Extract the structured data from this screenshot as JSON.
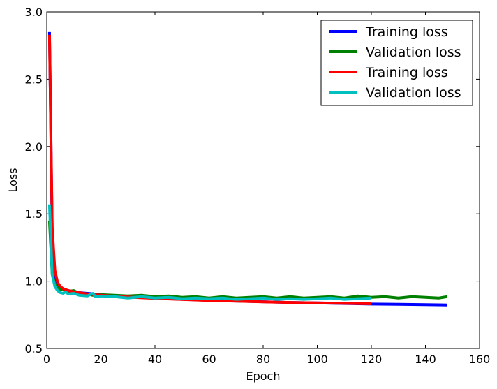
{
  "chart_data": {
    "type": "line",
    "title": "",
    "xlabel": "Epoch",
    "ylabel": "Loss",
    "xlim": [
      0,
      160
    ],
    "ylim": [
      0.5,
      3.0
    ],
    "xticks": [
      "0",
      "20",
      "40",
      "60",
      "80",
      "100",
      "120",
      "140",
      "160"
    ],
    "yticks": [
      "0.5",
      "1.0",
      "1.5",
      "2.0",
      "2.5",
      "3.0"
    ],
    "grid": false,
    "legend_position": "top-right",
    "series": [
      {
        "name": "Training loss",
        "color": "#0000ff",
        "x": [
          1,
          2,
          3,
          4,
          5,
          6,
          8,
          10,
          12,
          15,
          20,
          25,
          30,
          40,
          50,
          60,
          70,
          80,
          90,
          100,
          110,
          120,
          130,
          140,
          148
        ],
        "y": [
          2.85,
          1.35,
          1.05,
          0.98,
          0.95,
          0.94,
          0.93,
          0.92,
          0.915,
          0.91,
          0.9,
          0.89,
          0.885,
          0.875,
          0.865,
          0.858,
          0.852,
          0.847,
          0.842,
          0.838,
          0.834,
          0.83,
          0.828,
          0.825,
          0.823
        ]
      },
      {
        "name": "Validation loss",
        "color": "#008000",
        "x": [
          1,
          2,
          3,
          4,
          5,
          6,
          8,
          10,
          12,
          15,
          17,
          20,
          25,
          30,
          35,
          40,
          45,
          50,
          55,
          60,
          65,
          70,
          75,
          80,
          85,
          90,
          95,
          100,
          105,
          110,
          115,
          120,
          125,
          130,
          135,
          140,
          145,
          148
        ],
        "y": [
          1.45,
          1.05,
          0.98,
          0.95,
          0.94,
          0.935,
          0.925,
          0.93,
          0.91,
          0.905,
          0.895,
          0.9,
          0.895,
          0.89,
          0.895,
          0.885,
          0.89,
          0.88,
          0.885,
          0.875,
          0.885,
          0.875,
          0.88,
          0.885,
          0.875,
          0.885,
          0.875,
          0.88,
          0.885,
          0.875,
          0.89,
          0.88,
          0.885,
          0.875,
          0.885,
          0.88,
          0.875,
          0.885
        ]
      },
      {
        "name": "Training loss",
        "color": "#ff0000",
        "x": [
          1,
          2,
          3,
          4,
          5,
          6,
          8,
          10,
          12,
          15,
          20,
          25,
          30,
          40,
          50,
          60,
          70,
          80,
          90,
          100,
          110,
          120
        ],
        "y": [
          2.83,
          1.4,
          1.08,
          0.99,
          0.96,
          0.945,
          0.93,
          0.92,
          0.915,
          0.905,
          0.895,
          0.888,
          0.882,
          0.872,
          0.864,
          0.857,
          0.851,
          0.846,
          0.842,
          0.838,
          0.835,
          0.832
        ]
      },
      {
        "name": "Validation loss",
        "color": "#00bfbf",
        "x": [
          1,
          2,
          3,
          4,
          5,
          6,
          7,
          8,
          10,
          12,
          15,
          17,
          18,
          20,
          25,
          30,
          35,
          40,
          45,
          50,
          55,
          60,
          65,
          70,
          75,
          80,
          85,
          90,
          95,
          100,
          105,
          110,
          115,
          120
        ],
        "y": [
          1.57,
          1.05,
          0.96,
          0.93,
          0.915,
          0.91,
          0.92,
          0.905,
          0.91,
          0.895,
          0.89,
          0.91,
          0.885,
          0.89,
          0.885,
          0.875,
          0.885,
          0.875,
          0.88,
          0.87,
          0.875,
          0.87,
          0.875,
          0.865,
          0.87,
          0.875,
          0.865,
          0.87,
          0.865,
          0.87,
          0.875,
          0.865,
          0.87,
          0.875
        ]
      }
    ]
  }
}
